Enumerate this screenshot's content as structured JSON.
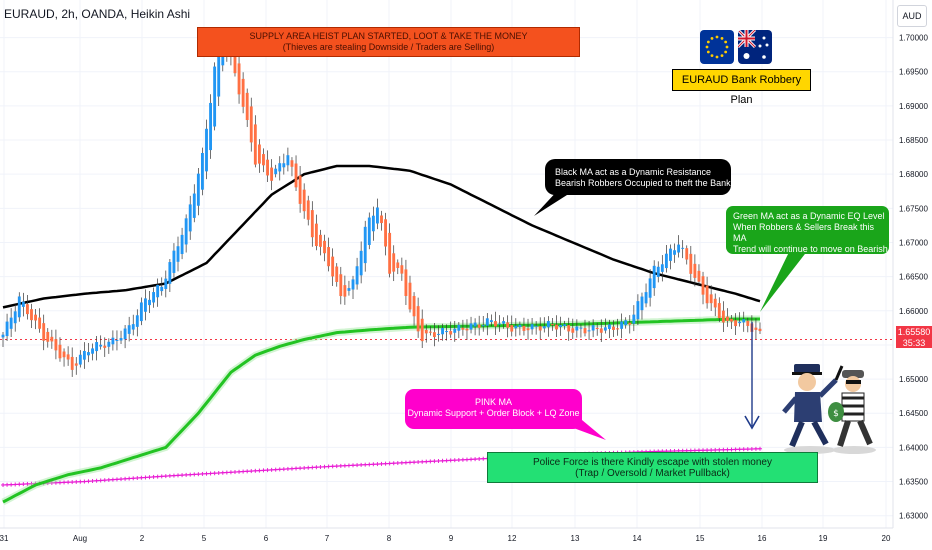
{
  "header": {
    "symbol_line": "EURAUD, 2h, OANDA, Heikin Ashi",
    "currency": "AUD"
  },
  "price_tag": {
    "price": "1.65580",
    "countdown": "35:33"
  },
  "annotations": {
    "supply": {
      "line1": "SUPPLY AREA HEIST PLAN STARTED, LOOT & TAKE THE MONEY",
      "line2": "(Thieves are stealing Downside / Traders are Selling)"
    },
    "black_ma": {
      "line1": "Black MA act as a Dynamic Resistance",
      "line2": "Bearish Robbers Occupied to theft the Bank"
    },
    "green_ma": {
      "line1": "Green MA act as a Dynamic EQ Level",
      "line2": "When Robbers & Sellers Break this MA",
      "line3": "Trend will continue to move on Bearish"
    },
    "pink_ma": {
      "line1": "PINK MA",
      "line2": "Dynamic Support + Order Block + LQ Zone"
    },
    "police": {
      "line1": "Police Force is there Kindly escape with stolen money",
      "line2": "(Trap / Oversold / Market Pullback)"
    },
    "plan_title": "EURAUD Bank Robbery Plan"
  },
  "icons": [
    "eu-flag-icon",
    "australia-flag-icon",
    "police-chasing-thief-illustration"
  ],
  "colors": {
    "bull": "#2196f3",
    "bear": "#ff7043",
    "black_ma": "#000000",
    "green_ma": "#22c322",
    "pink_ma": "#e91ed4",
    "last_price": "#f23645"
  },
  "chart_data": {
    "type": "candlestick",
    "style": "Heikin Ashi",
    "y_axis": {
      "ticks": [
        "1.70000",
        "1.69500",
        "1.69000",
        "1.68500",
        "1.68000",
        "1.67500",
        "1.67000",
        "1.66500",
        "1.66000",
        "1.65500",
        "1.65000",
        "1.64500",
        "1.64000",
        "1.63500",
        "1.63000"
      ],
      "range": [
        1.6282,
        1.7055
      ]
    },
    "x_axis": {
      "ticks": [
        "31",
        "Aug",
        "2",
        "5",
        "6",
        "7",
        "8",
        "9",
        "12",
        "13",
        "14",
        "15",
        "16",
        "19",
        "20"
      ]
    },
    "last_price": 1.6558,
    "series": [
      {
        "name": "Heikin Ashi candles",
        "anchors_index_close": [
          [
            0,
            1.6565
          ],
          [
            4,
            1.6618
          ],
          [
            10,
            1.6562
          ],
          [
            17,
            1.6517
          ],
          [
            21,
            1.6545
          ],
          [
            27,
            1.6555
          ],
          [
            31,
            1.6575
          ],
          [
            35,
            1.6617
          ],
          [
            39,
            1.6637
          ],
          [
            45,
            1.673
          ],
          [
            49,
            1.6825
          ],
          [
            51,
            1.691
          ],
          [
            53,
            1.7
          ],
          [
            55,
            1.699
          ],
          [
            59,
            1.69
          ],
          [
            62,
            1.682
          ],
          [
            66,
            1.6795
          ],
          [
            70,
            1.683
          ],
          [
            72,
            1.678
          ],
          [
            76,
            1.671
          ],
          [
            80,
            1.667
          ],
          [
            83,
            1.662
          ],
          [
            86,
            1.664
          ],
          [
            89,
            1.672
          ],
          [
            92,
            1.6755
          ],
          [
            95,
            1.666
          ],
          [
            98,
            1.6655
          ],
          [
            100,
            1.66
          ],
          [
            103,
            1.656
          ],
          [
            106,
            1.6567
          ],
          [
            109,
            1.657
          ],
          [
            113,
            1.6575
          ],
          [
            117,
            1.658
          ],
          [
            120,
            1.6585
          ],
          [
            125,
            1.6575
          ],
          [
            130,
            1.6575
          ],
          [
            135,
            1.658
          ],
          [
            140,
            1.6572
          ],
          [
            145,
            1.6573
          ],
          [
            150,
            1.6575
          ],
          [
            154,
            1.6585
          ],
          [
            157,
            1.662
          ],
          [
            160,
            1.666
          ],
          [
            163,
            1.668
          ],
          [
            166,
            1.67
          ],
          [
            169,
            1.666
          ],
          [
            172,
            1.6625
          ],
          [
            175,
            1.66
          ],
          [
            178,
            1.658
          ],
          [
            181,
            1.6585
          ],
          [
            184,
            1.6575
          ],
          [
            186,
            1.6565
          ]
        ]
      },
      {
        "name": "Black MA",
        "points": [
          [
            0,
            1.6605
          ],
          [
            10,
            1.6618
          ],
          [
            20,
            1.6625
          ],
          [
            30,
            1.663
          ],
          [
            40,
            1.664
          ],
          [
            50,
            1.667
          ],
          [
            58,
            1.672
          ],
          [
            66,
            1.677
          ],
          [
            74,
            1.68
          ],
          [
            82,
            1.6812
          ],
          [
            90,
            1.6812
          ],
          [
            100,
            1.6805
          ],
          [
            110,
            1.6785
          ],
          [
            120,
            1.6755
          ],
          [
            130,
            1.6725
          ],
          [
            140,
            1.67
          ],
          [
            150,
            1.6675
          ],
          [
            160,
            1.6655
          ],
          [
            170,
            1.664
          ],
          [
            180,
            1.6625
          ],
          [
            186,
            1.6614
          ]
        ]
      },
      {
        "name": "Green MA",
        "points": [
          [
            0,
            1.632
          ],
          [
            8,
            1.6345
          ],
          [
            16,
            1.636
          ],
          [
            24,
            1.637
          ],
          [
            32,
            1.6385
          ],
          [
            40,
            1.64
          ],
          [
            48,
            1.645
          ],
          [
            56,
            1.651
          ],
          [
            62,
            1.6535
          ],
          [
            68,
            1.6548
          ],
          [
            74,
            1.6558
          ],
          [
            82,
            1.6568
          ],
          [
            90,
            1.6572
          ],
          [
            100,
            1.6576
          ],
          [
            110,
            1.6577
          ],
          [
            120,
            1.6578
          ],
          [
            130,
            1.6579
          ],
          [
            140,
            1.658
          ],
          [
            150,
            1.6582
          ],
          [
            160,
            1.6584
          ],
          [
            170,
            1.6586
          ],
          [
            180,
            1.6588
          ],
          [
            186,
            1.6588
          ]
        ]
      },
      {
        "name": "Pink MA",
        "points": [
          [
            0,
            1.6345
          ],
          [
            20,
            1.635
          ],
          [
            40,
            1.6358
          ],
          [
            60,
            1.6365
          ],
          [
            80,
            1.6372
          ],
          [
            100,
            1.6378
          ],
          [
            120,
            1.6384
          ],
          [
            140,
            1.639
          ],
          [
            160,
            1.6394
          ],
          [
            180,
            1.6397
          ],
          [
            186,
            1.6398
          ]
        ]
      }
    ]
  }
}
